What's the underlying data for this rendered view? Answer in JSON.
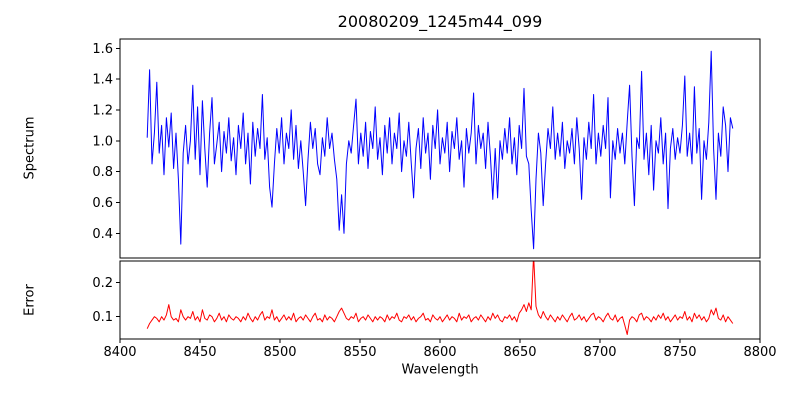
{
  "title": "20080209_1245m44_099",
  "chart_data": [
    {
      "type": "line",
      "name": "spectrum-panel",
      "title": "20080209_1245m44_099",
      "ylabel": "Spectrum",
      "series_name": "spectrum-line",
      "color": "#0000ff",
      "grid": false,
      "legend": false,
      "xlim": [
        8400,
        8800
      ],
      "ylim": [
        0.24,
        1.66
      ],
      "y_tick_values": [
        0.4,
        0.6,
        0.8,
        1.0,
        1.2,
        1.4,
        1.6
      ],
      "y_tick_labels": [
        "0.4",
        "0.6",
        "0.8",
        "1.0",
        "1.2",
        "1.4",
        "1.6"
      ],
      "x_start": 8417,
      "x_step": 1.5,
      "values": [
        1.02,
        1.46,
        0.85,
        1.05,
        1.38,
        0.92,
        1.1,
        0.78,
        1.15,
        0.96,
        1.18,
        0.82,
        1.05,
        0.75,
        0.33,
        0.92,
        1.1,
        0.85,
        1.0,
        1.36,
        0.88,
        1.22,
        0.78,
        1.26,
        0.95,
        0.7,
        1.05,
        1.28,
        0.85,
        0.98,
        1.12,
        0.8,
        1.06,
        0.92,
        1.15,
        0.87,
        1.02,
        0.78,
        1.1,
        0.95,
        1.18,
        0.85,
        1.05,
        0.72,
        1.12,
        0.9,
        1.08,
        0.95,
        1.3,
        0.88,
        1.02,
        0.7,
        0.57,
        0.85,
        1.08,
        0.92,
        1.15,
        0.85,
        1.05,
        0.95,
        1.2,
        0.88,
        1.1,
        0.82,
        1.0,
        0.8,
        0.58,
        0.88,
        1.12,
        0.95,
        1.08,
        0.85,
        0.78,
        1.02,
        0.9,
        1.15,
        0.95,
        1.05,
        0.88,
        0.75,
        0.42,
        0.65,
        0.4,
        0.85,
        1.0,
        0.92,
        1.1,
        1.27,
        0.85,
        1.05,
        0.9,
        1.12,
        0.82,
        1.06,
        0.95,
        1.22,
        0.88,
        1.02,
        0.78,
        1.1,
        0.92,
        1.15,
        0.85,
        1.05,
        0.95,
        1.18,
        0.8,
        1.0,
        0.9,
        1.12,
        0.86,
        0.63,
        0.95,
        1.08,
        0.82,
        1.15,
        0.92,
        1.05,
        0.75,
        1.1,
        0.95,
        1.2,
        0.85,
        1.02,
        0.92,
        1.12,
        0.8,
        1.06,
        0.95,
        1.15,
        0.88,
        1.0,
        0.7,
        1.08,
        0.92,
        1.05,
        1.31,
        0.85,
        1.1,
        0.95,
        1.05,
        0.82,
        1.12,
        0.9,
        0.62,
        0.95,
        0.63,
        1.0,
        0.88,
        1.08,
        0.92,
        1.15,
        0.85,
        1.02,
        0.78,
        1.1,
        0.95,
        1.34,
        0.9,
        0.85,
        0.55,
        0.3,
        0.75,
        1.05,
        0.92,
        0.58,
        0.85,
        1.08,
        0.95,
        1.22,
        0.88,
        1.05,
        0.9,
        1.12,
        0.82,
        1.0,
        0.92,
        1.08,
        0.85,
        1.15,
        0.95,
        0.62,
        1.02,
        0.88,
        1.12,
        0.95,
        1.3,
        0.85,
        1.05,
        0.9,
        1.1,
        0.95,
        1.28,
        0.63,
        1.0,
        0.88,
        1.08,
        0.92,
        1.05,
        0.85,
        1.12,
        1.36,
        0.9,
        0.58,
        1.02,
        0.95,
        1.45,
        0.88,
        1.05,
        0.78,
        1.1,
        0.68,
        1.0,
        0.92,
        1.15,
        0.85,
        1.05,
        0.56,
        0.95,
        1.08,
        0.88,
        1.02,
        0.92,
        1.1,
        1.42,
        0.9,
        1.05,
        0.85,
        1.35,
        0.92,
        1.08,
        0.62,
        1.0,
        0.88,
        1.12,
        1.58,
        0.95,
        0.62,
        1.05,
        0.9,
        1.22,
        1.1,
        0.8,
        1.15,
        1.08
      ]
    },
    {
      "type": "line",
      "name": "error-panel",
      "ylabel": "Error",
      "xlabel": "Wavelength",
      "series_name": "error-line",
      "color": "#ff0000",
      "grid": false,
      "legend": false,
      "xlim": [
        8400,
        8800
      ],
      "ylim": [
        0.035,
        0.262
      ],
      "y_tick_values": [
        0.1,
        0.2
      ],
      "y_tick_labels": [
        "0.1",
        "0.2"
      ],
      "x_tick_values": [
        8400,
        8450,
        8500,
        8550,
        8600,
        8650,
        8700,
        8750,
        8800
      ],
      "x_tick_labels": [
        "8400",
        "8450",
        "8500",
        "8550",
        "8600",
        "8650",
        "8700",
        "8750",
        "8800"
      ],
      "x_start": 8417,
      "x_step": 1.5,
      "values": [
        0.065,
        0.08,
        0.09,
        0.1,
        0.095,
        0.085,
        0.1,
        0.09,
        0.105,
        0.135,
        0.1,
        0.09,
        0.095,
        0.085,
        0.12,
        0.1,
        0.09,
        0.1,
        0.095,
        0.115,
        0.09,
        0.1,
        0.085,
        0.12,
        0.095,
        0.09,
        0.105,
        0.1,
        0.085,
        0.095,
        0.11,
        0.09,
        0.1,
        0.085,
        0.105,
        0.095,
        0.09,
        0.1,
        0.095,
        0.085,
        0.1,
        0.09,
        0.11,
        0.095,
        0.085,
        0.1,
        0.09,
        0.105,
        0.115,
        0.09,
        0.1,
        0.095,
        0.12,
        0.09,
        0.1,
        0.085,
        0.095,
        0.105,
        0.09,
        0.1,
        0.09,
        0.11,
        0.085,
        0.095,
        0.1,
        0.09,
        0.105,
        0.095,
        0.085,
        0.1,
        0.11,
        0.09,
        0.095,
        0.085,
        0.105,
        0.09,
        0.1,
        0.095,
        0.085,
        0.1,
        0.115,
        0.125,
        0.11,
        0.095,
        0.09,
        0.1,
        0.095,
        0.11,
        0.085,
        0.095,
        0.1,
        0.09,
        0.105,
        0.095,
        0.085,
        0.1,
        0.09,
        0.1,
        0.095,
        0.085,
        0.105,
        0.09,
        0.1,
        0.095,
        0.11,
        0.09,
        0.085,
        0.1,
        0.095,
        0.105,
        0.09,
        0.1,
        0.085,
        0.095,
        0.1,
        0.11,
        0.09,
        0.095,
        0.085,
        0.105,
        0.095,
        0.09,
        0.1,
        0.085,
        0.095,
        0.105,
        0.09,
        0.1,
        0.095,
        0.085,
        0.11,
        0.09,
        0.1,
        0.095,
        0.105,
        0.085,
        0.095,
        0.1,
        0.09,
        0.105,
        0.095,
        0.085,
        0.1,
        0.09,
        0.11,
        0.095,
        0.105,
        0.09,
        0.085,
        0.1,
        0.095,
        0.105,
        0.09,
        0.1,
        0.085,
        0.11,
        0.12,
        0.135,
        0.115,
        0.14,
        0.12,
        0.28,
        0.13,
        0.105,
        0.095,
        0.115,
        0.1,
        0.09,
        0.105,
        0.095,
        0.085,
        0.1,
        0.09,
        0.105,
        0.095,
        0.085,
        0.1,
        0.11,
        0.09,
        0.095,
        0.105,
        0.09,
        0.1,
        0.085,
        0.095,
        0.105,
        0.11,
        0.09,
        0.1,
        0.095,
        0.085,
        0.1,
        0.11,
        0.095,
        0.09,
        0.105,
        0.085,
        0.095,
        0.1,
        0.075,
        0.048,
        0.09,
        0.1,
        0.095,
        0.085,
        0.105,
        0.11,
        0.09,
        0.1,
        0.095,
        0.085,
        0.1,
        0.09,
        0.105,
        0.095,
        0.11,
        0.09,
        0.1,
        0.085,
        0.095,
        0.105,
        0.09,
        0.1,
        0.095,
        0.115,
        0.09,
        0.1,
        0.085,
        0.11,
        0.095,
        0.105,
        0.09,
        0.1,
        0.085,
        0.095,
        0.12,
        0.105,
        0.125,
        0.095,
        0.09,
        0.105,
        0.085,
        0.1,
        0.09,
        0.08
      ]
    }
  ]
}
